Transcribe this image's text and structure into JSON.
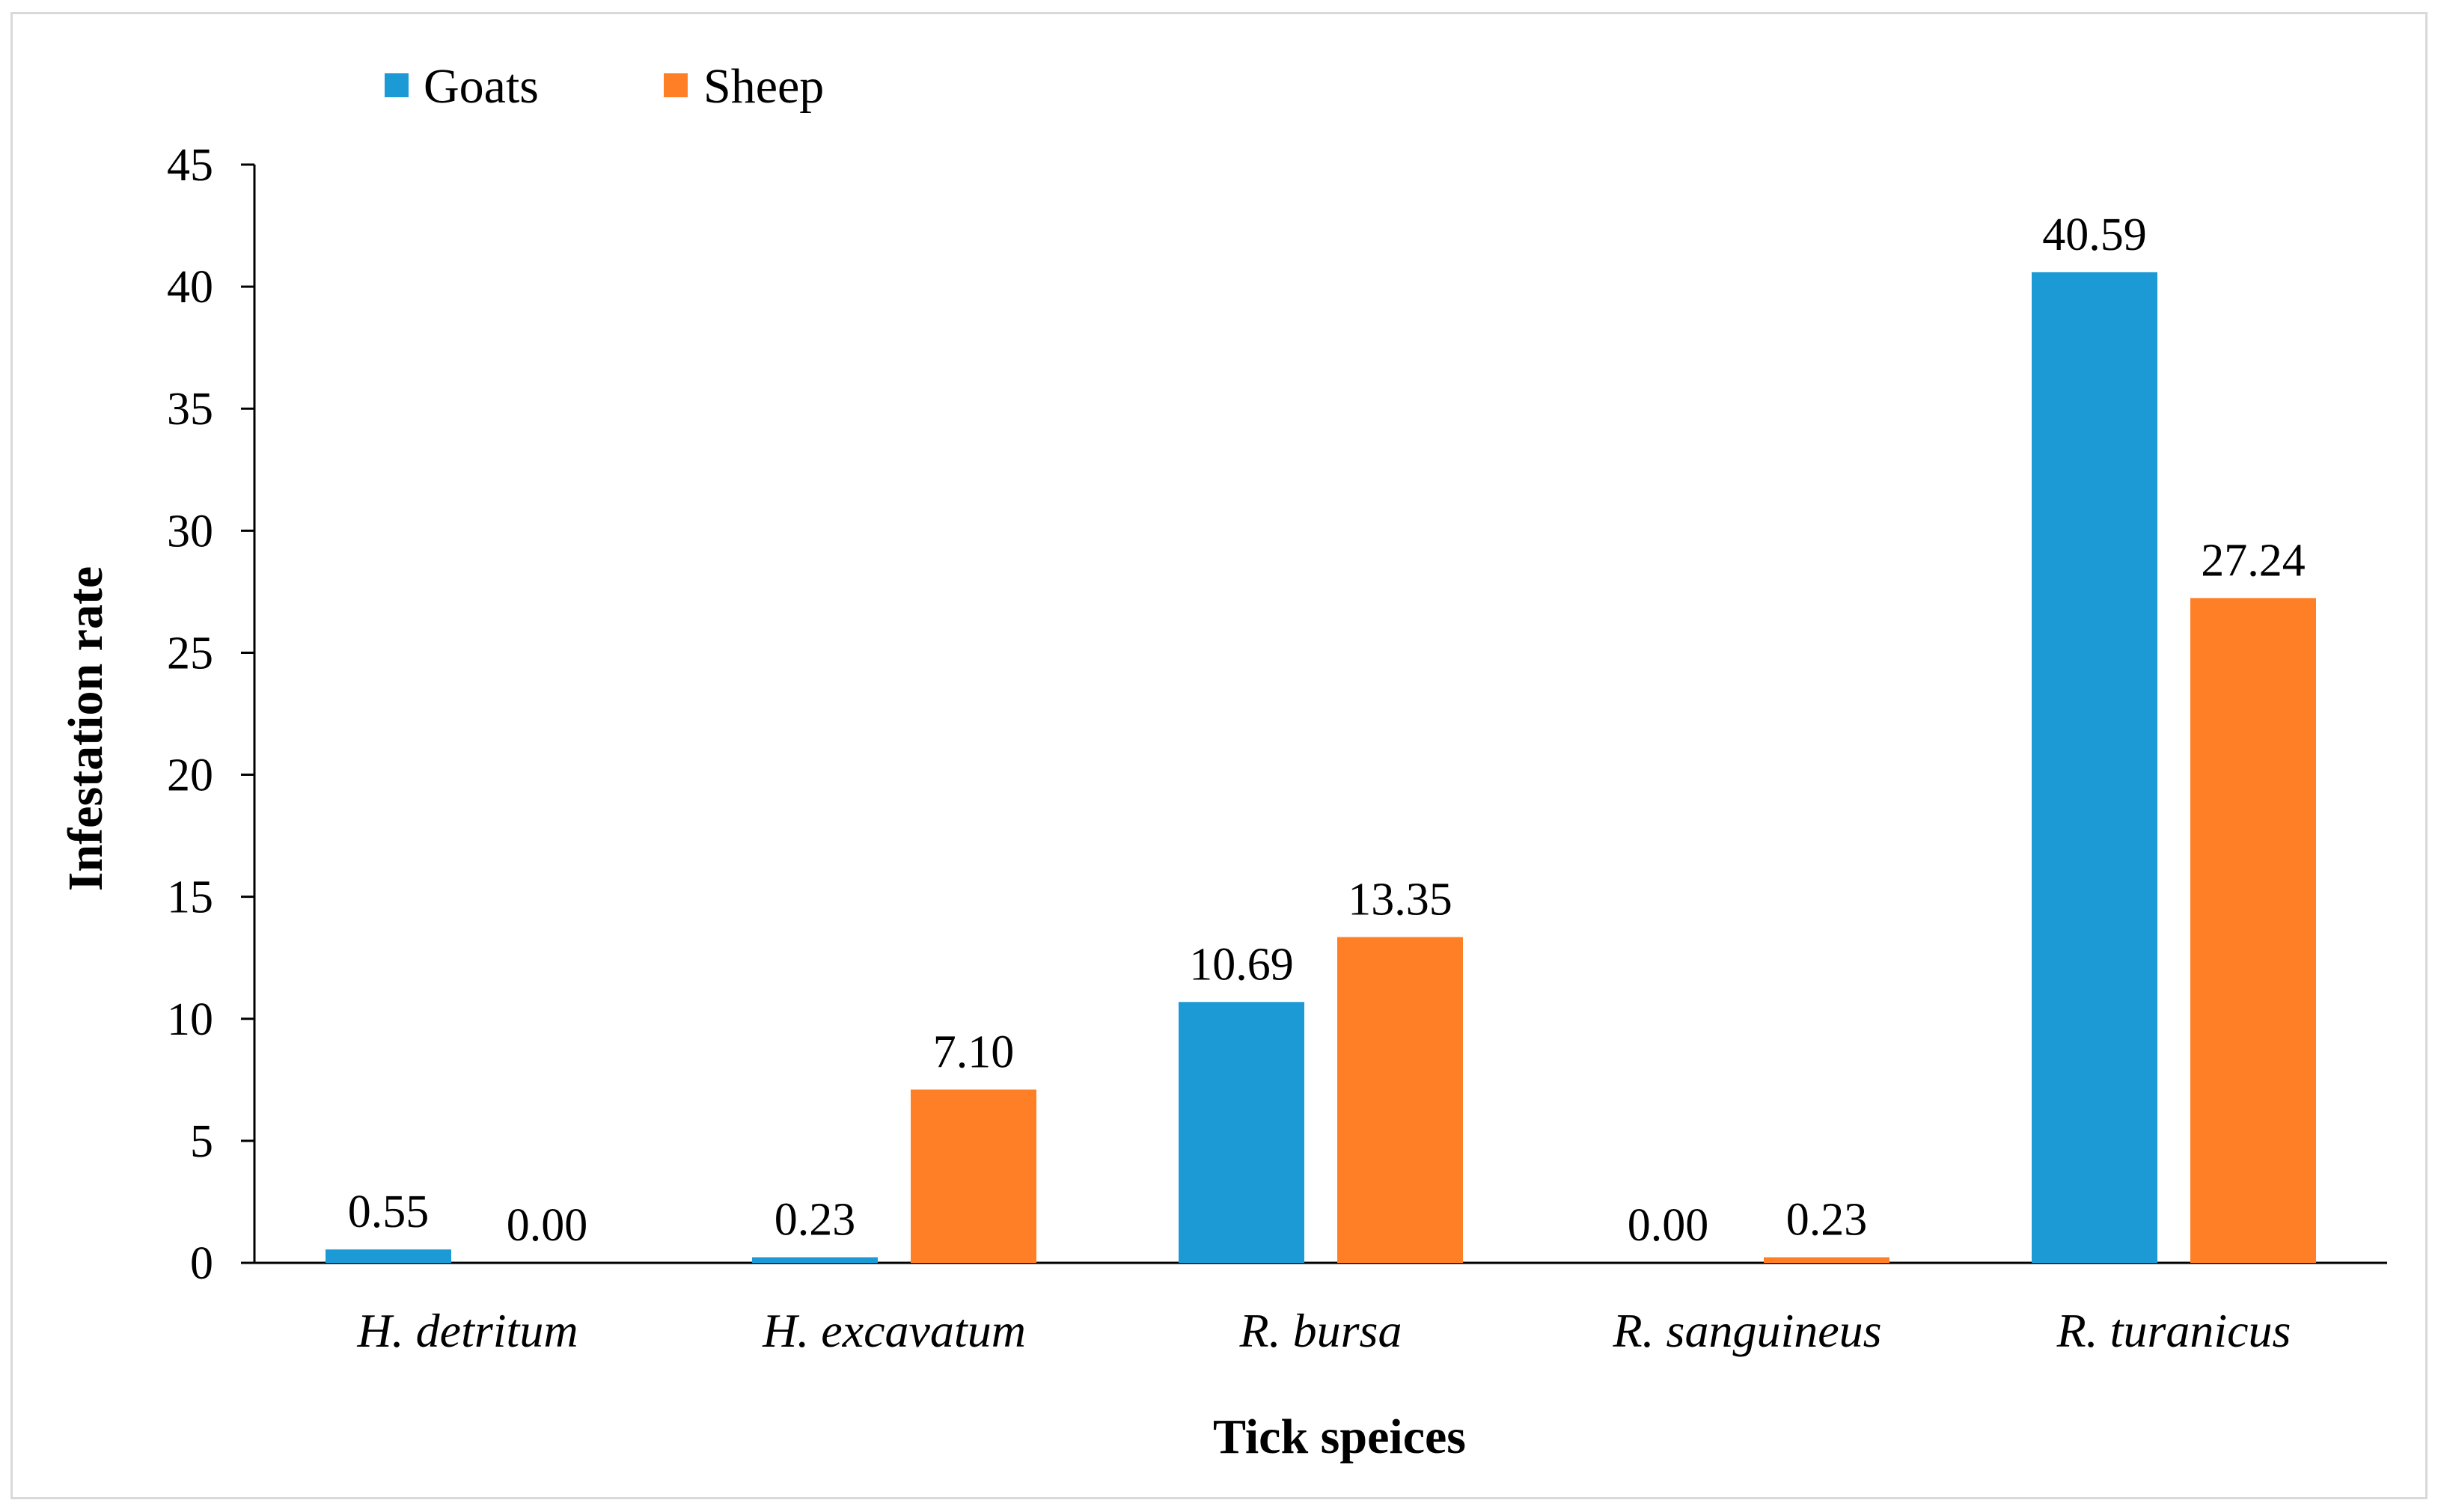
{
  "chart_data": {
    "type": "bar",
    "title": "",
    "xlabel": "Tick speices",
    "ylabel": "Infestation rate",
    "ylim": [
      0,
      45
    ],
    "yticks": [
      0,
      5,
      10,
      15,
      20,
      25,
      30,
      35,
      40,
      45
    ],
    "grid": false,
    "legend_position": "top-left",
    "categories": [
      "H. detritum",
      "H. excavatum",
      "R. bursa",
      "R. sanguineus",
      "R. turanicus"
    ],
    "series": [
      {
        "name": "Goats",
        "color": "#1C9AD6",
        "values": [
          0.55,
          0.23,
          10.69,
          0.0,
          40.59
        ],
        "labels": [
          "0.55",
          "0.23",
          "10.69",
          "0.00",
          "40.59"
        ]
      },
      {
        "name": "Sheep",
        "color": "#FF7F27",
        "values": [
          0.0,
          7.1,
          13.35,
          0.23,
          27.24
        ],
        "labels": [
          "0.00",
          "7.10",
          "13.35",
          "0.23",
          "27.24"
        ]
      }
    ]
  }
}
